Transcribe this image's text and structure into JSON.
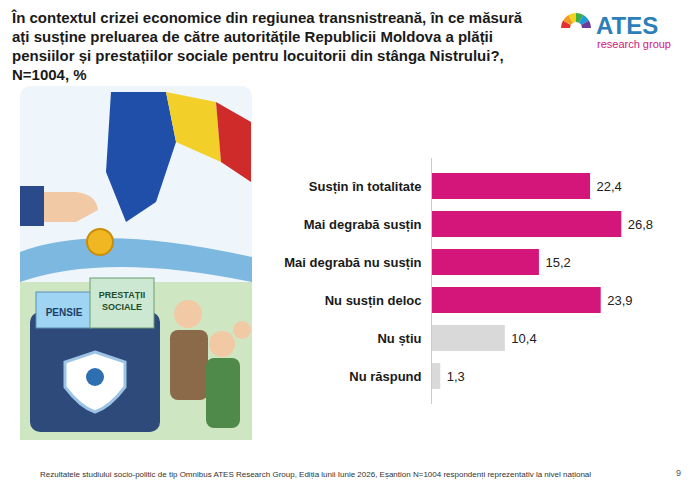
{
  "chart_data": {
    "type": "bar",
    "orientation": "horizontal",
    "title": "În contextul crizei economice din regiunea transnistreană, în ce măsură ați susține preluarea de către autoritățile Republicii Moldova a plății pensiilor și prestațiilor sociale pentru locuitorii din stânga Nistrului?, N=1004, %",
    "categories": [
      "Susțin în totalitate",
      "Mai degrabă susțin",
      "Mai degrabă nu susțin",
      "Nu susțin deloc",
      "Nu știu",
      "Nu răspund"
    ],
    "values": [
      22.4,
      26.8,
      15.2,
      23.9,
      10.4,
      1.3
    ],
    "value_labels": [
      "22,4",
      "26,8",
      "15,2",
      "23,9",
      "10,4",
      "1,3"
    ],
    "colors": [
      "#d4157a",
      "#d4157a",
      "#d4157a",
      "#d4157a",
      "#d9d9d9",
      "#d9d9d9"
    ],
    "xlim": [
      0,
      30
    ],
    "data_labels": true,
    "tick_labels": "y",
    "grid": false,
    "caption": "Rezultatele studiului socio-politic de tip Omnibus ATES Research Group, Ediția lunii Iunie 2026, Eșantion N=1004 respondenți reprezentativ la nivel național"
  },
  "logo": {
    "name": "ATES",
    "tagline": "research group"
  },
  "illustration": {
    "texts": [
      "PENSIE",
      "PRESTAȚII SOCIALE"
    ]
  },
  "page_number": 9
}
